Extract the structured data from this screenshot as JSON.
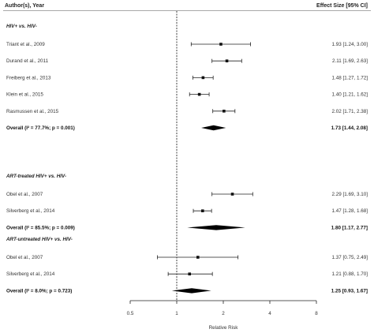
{
  "header": {
    "left": "Author(s), Year",
    "right": "Effect Size [95% CI]"
  },
  "chart_data": {
    "type": "forest",
    "xlabel": "Relative Risk",
    "x_scale": "log",
    "xlim": [
      0.5,
      8
    ],
    "ticks": [
      0.5,
      1,
      2,
      4,
      8
    ],
    "tick_labels": [
      "0.5",
      "1",
      "2",
      "4",
      "8"
    ],
    "reference_line": 1,
    "groups": [
      {
        "title": "HIV+ vs. HIV-",
        "studies": [
          {
            "label": "Triant et al., 2009",
            "estimate": 1.93,
            "lower": 1.24,
            "upper": 3.0,
            "text": "1.93 [1.24, 3.00]"
          },
          {
            "label": "Durand et al., 2011",
            "estimate": 2.11,
            "lower": 1.69,
            "upper": 2.63,
            "text": "2.11 [1.69, 2.63]"
          },
          {
            "label": "Freiberg et al., 2013",
            "estimate": 1.48,
            "lower": 1.27,
            "upper": 1.72,
            "text": "1.48 [1.27, 1.72]"
          },
          {
            "label": "Klein et al., 2015",
            "estimate": 1.4,
            "lower": 1.21,
            "upper": 1.62,
            "text": "1.40 [1.21, 1.62]"
          },
          {
            "label": "Rasmussen et al., 2015",
            "estimate": 2.02,
            "lower": 1.71,
            "upper": 2.38,
            "text": "2.02 [1.71, 2.38]"
          }
        ],
        "overall": {
          "label": "Overall (I² = 77.7%; p = 0.001)",
          "estimate": 1.73,
          "lower": 1.44,
          "upper": 2.08,
          "text": "1.73 [1.44, 2.08]"
        }
      },
      {
        "title": "ART-treated HIV+ vs. HIV-",
        "studies": [
          {
            "label": "Obel et al., 2007",
            "estimate": 2.29,
            "lower": 1.69,
            "upper": 3.1,
            "text": "2.29 [1.69, 3.10]"
          },
          {
            "label": "Silverberg et al., 2014",
            "estimate": 1.47,
            "lower": 1.28,
            "upper": 1.68,
            "text": "1.47 [1.28, 1.68]"
          }
        ],
        "overall": {
          "label": "Overall (I² = 85.5%; p = 0.009)",
          "estimate": 1.8,
          "lower": 1.17,
          "upper": 2.77,
          "text": "1.80 [1.17, 2.77]"
        }
      },
      {
        "title": "ART-untreated HIV+ vs. HIV-",
        "studies": [
          {
            "label": "Obel et al., 2007",
            "estimate": 1.37,
            "lower": 0.75,
            "upper": 2.49,
            "text": "1.37 [0.75, 2.49]"
          },
          {
            "label": "Silverberg et al., 2014",
            "estimate": 1.21,
            "lower": 0.88,
            "upper": 1.7,
            "text": "1.21 [0.88, 1.70]"
          }
        ],
        "overall": {
          "label": "Overall (I² = 8.0%; p = 0.723)",
          "estimate": 1.25,
          "lower": 0.93,
          "upper": 1.67,
          "text": "1.25 [0.93, 1.67]"
        }
      }
    ]
  }
}
